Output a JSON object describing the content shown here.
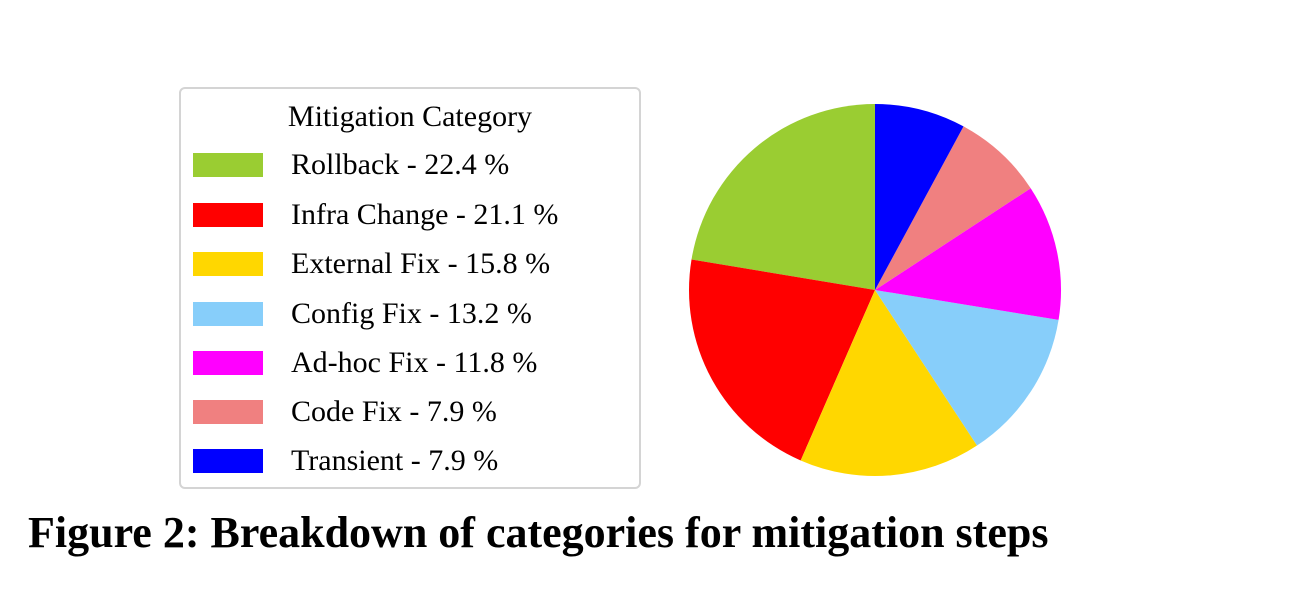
{
  "figure": {
    "caption": "Figure 2: Breakdown of categories for mitigation steps"
  },
  "chart_data": {
    "type": "pie",
    "legend_title": "Mitigation Category",
    "legend_placement": "left",
    "start_angle": "12 o'clock, counterclockwise",
    "slices": [
      {
        "label": "Rollback - 22.4 %",
        "category": "Rollback",
        "value": 22.4,
        "color": "#9acd32"
      },
      {
        "label": "Infra Change - 21.1 %",
        "category": "Infra Change",
        "value": 21.1,
        "color": "#ff0000"
      },
      {
        "label": "External Fix - 15.8 %",
        "category": "External Fix",
        "value": 15.8,
        "color": "#ffd700"
      },
      {
        "label": "Config Fix - 13.2 %",
        "category": "Config Fix",
        "value": 13.2,
        "color": "#87cefa"
      },
      {
        "label": "Ad-hoc Fix - 11.8 %",
        "category": "Ad-hoc Fix",
        "value": 11.8,
        "color": "#ff00ff"
      },
      {
        "label": "Code Fix - 7.9 %",
        "category": "Code Fix",
        "value": 7.9,
        "color": "#f08080"
      },
      {
        "label": "Transient - 7.9 %",
        "category": "Transient",
        "value": 7.9,
        "color": "#0000ff"
      }
    ]
  }
}
